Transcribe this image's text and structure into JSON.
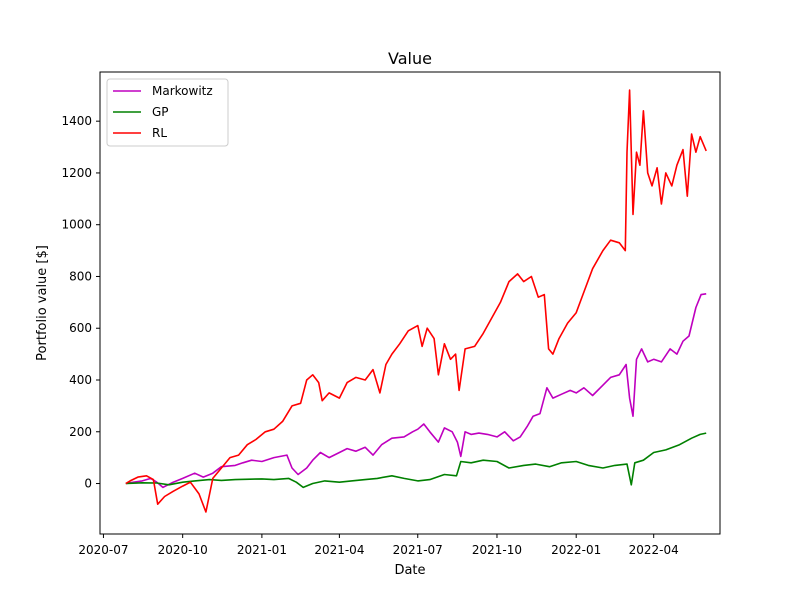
{
  "chart_data": {
    "type": "line",
    "title": "Value",
    "xlabel": "Date",
    "ylabel": "Portfolio value [$]",
    "xlim": [
      "2020-06-27",
      "2022-06-17"
    ],
    "ylim": [
      -195,
      1590
    ],
    "x_ticks": [
      "2020-07",
      "2020-10",
      "2021-01",
      "2021-04",
      "2021-07",
      "2021-10",
      "2022-01",
      "2022-04"
    ],
    "y_ticks": [
      0,
      200,
      400,
      600,
      800,
      1000,
      1200,
      1400
    ],
    "grid": false,
    "legend_position": "upper-left",
    "series": [
      {
        "name": "Markowitz",
        "color": "#bf00bf",
        "points": [
          [
            "2020-07-27",
            0
          ],
          [
            "2020-08-05",
            5
          ],
          [
            "2020-08-15",
            10
          ],
          [
            "2020-08-25",
            20
          ],
          [
            "2020-09-01",
            5
          ],
          [
            "2020-09-08",
            -15
          ],
          [
            "2020-09-20",
            5
          ],
          [
            "2020-10-01",
            20
          ],
          [
            "2020-10-15",
            40
          ],
          [
            "2020-10-25",
            25
          ],
          [
            "2020-11-05",
            40
          ],
          [
            "2020-11-15",
            65
          ],
          [
            "2020-12-01",
            70
          ],
          [
            "2020-12-10",
            80
          ],
          [
            "2020-12-20",
            90
          ],
          [
            "2021-01-01",
            85
          ],
          [
            "2021-01-15",
            100
          ],
          [
            "2021-01-30",
            110
          ],
          [
            "2021-02-05",
            60
          ],
          [
            "2021-02-12",
            35
          ],
          [
            "2021-02-22",
            60
          ],
          [
            "2021-03-01",
            90
          ],
          [
            "2021-03-10",
            120
          ],
          [
            "2021-03-20",
            100
          ],
          [
            "2021-04-01",
            120
          ],
          [
            "2021-04-10",
            135
          ],
          [
            "2021-04-20",
            125
          ],
          [
            "2021-05-01",
            140
          ],
          [
            "2021-05-10",
            110
          ],
          [
            "2021-05-20",
            150
          ],
          [
            "2021-06-01",
            175
          ],
          [
            "2021-06-15",
            180
          ],
          [
            "2021-06-25",
            200
          ],
          [
            "2021-07-01",
            210
          ],
          [
            "2021-07-08",
            230
          ],
          [
            "2021-07-15",
            200
          ],
          [
            "2021-07-25",
            160
          ],
          [
            "2021-08-01",
            215
          ],
          [
            "2021-08-10",
            200
          ],
          [
            "2021-08-16",
            160
          ],
          [
            "2021-08-20",
            105
          ],
          [
            "2021-08-25",
            200
          ],
          [
            "2021-09-01",
            190
          ],
          [
            "2021-09-10",
            195
          ],
          [
            "2021-09-20",
            190
          ],
          [
            "2021-10-01",
            180
          ],
          [
            "2021-10-10",
            200
          ],
          [
            "2021-10-20",
            165
          ],
          [
            "2021-10-28",
            180
          ],
          [
            "2021-11-05",
            220
          ],
          [
            "2021-11-12",
            260
          ],
          [
            "2021-11-20",
            270
          ],
          [
            "2021-11-28",
            370
          ],
          [
            "2021-12-05",
            330
          ],
          [
            "2021-12-15",
            345
          ],
          [
            "2021-12-25",
            360
          ],
          [
            "2022-01-01",
            350
          ],
          [
            "2022-01-10",
            370
          ],
          [
            "2022-01-20",
            340
          ],
          [
            "2022-02-01",
            380
          ],
          [
            "2022-02-10",
            410
          ],
          [
            "2022-02-20",
            420
          ],
          [
            "2022-02-28",
            460
          ],
          [
            "2022-03-04",
            330
          ],
          [
            "2022-03-08",
            260
          ],
          [
            "2022-03-12",
            480
          ],
          [
            "2022-03-18",
            520
          ],
          [
            "2022-03-25",
            470
          ],
          [
            "2022-04-01",
            480
          ],
          [
            "2022-04-10",
            470
          ],
          [
            "2022-04-20",
            520
          ],
          [
            "2022-04-28",
            500
          ],
          [
            "2022-05-05",
            550
          ],
          [
            "2022-05-12",
            570
          ],
          [
            "2022-05-20",
            680
          ],
          [
            "2022-05-26",
            730
          ],
          [
            "2022-06-01",
            733
          ]
        ]
      },
      {
        "name": "GP",
        "color": "#008000",
        "points": [
          [
            "2020-07-27",
            0
          ],
          [
            "2020-08-15",
            3
          ],
          [
            "2020-09-01",
            2
          ],
          [
            "2020-09-15",
            -5
          ],
          [
            "2020-10-01",
            5
          ],
          [
            "2020-10-15",
            10
          ],
          [
            "2020-11-01",
            15
          ],
          [
            "2020-11-15",
            12
          ],
          [
            "2020-12-01",
            15
          ],
          [
            "2021-01-01",
            18
          ],
          [
            "2021-01-15",
            15
          ],
          [
            "2021-02-01",
            20
          ],
          [
            "2021-02-10",
            5
          ],
          [
            "2021-02-18",
            -15
          ],
          [
            "2021-03-01",
            0
          ],
          [
            "2021-03-15",
            10
          ],
          [
            "2021-04-01",
            5
          ],
          [
            "2021-04-15",
            10
          ],
          [
            "2021-05-01",
            15
          ],
          [
            "2021-05-15",
            20
          ],
          [
            "2021-06-01",
            30
          ],
          [
            "2021-06-15",
            20
          ],
          [
            "2021-07-01",
            10
          ],
          [
            "2021-07-15",
            15
          ],
          [
            "2021-08-01",
            35
          ],
          [
            "2021-08-15",
            30
          ],
          [
            "2021-08-20",
            85
          ],
          [
            "2021-09-01",
            80
          ],
          [
            "2021-09-15",
            90
          ],
          [
            "2021-10-01",
            85
          ],
          [
            "2021-10-15",
            60
          ],
          [
            "2021-11-01",
            70
          ],
          [
            "2021-11-15",
            75
          ],
          [
            "2021-12-01",
            65
          ],
          [
            "2021-12-15",
            80
          ],
          [
            "2022-01-01",
            85
          ],
          [
            "2022-01-15",
            70
          ],
          [
            "2022-02-01",
            60
          ],
          [
            "2022-02-15",
            70
          ],
          [
            "2022-03-01",
            75
          ],
          [
            "2022-03-06",
            -5
          ],
          [
            "2022-03-10",
            80
          ],
          [
            "2022-03-20",
            90
          ],
          [
            "2022-04-01",
            120
          ],
          [
            "2022-04-15",
            130
          ],
          [
            "2022-05-01",
            150
          ],
          [
            "2022-05-15",
            175
          ],
          [
            "2022-05-25",
            190
          ],
          [
            "2022-06-01",
            195
          ]
        ]
      },
      {
        "name": "RL",
        "color": "#ff0000",
        "points": [
          [
            "2020-07-27",
            0
          ],
          [
            "2020-08-01",
            10
          ],
          [
            "2020-08-10",
            25
          ],
          [
            "2020-08-20",
            30
          ],
          [
            "2020-08-28",
            15
          ],
          [
            "2020-09-02",
            -80
          ],
          [
            "2020-09-10",
            -50
          ],
          [
            "2020-09-20",
            -30
          ],
          [
            "2020-10-01",
            -10
          ],
          [
            "2020-10-10",
            5
          ],
          [
            "2020-10-20",
            -40
          ],
          [
            "2020-10-28",
            -110
          ],
          [
            "2020-11-05",
            20
          ],
          [
            "2020-11-15",
            60
          ],
          [
            "2020-11-25",
            100
          ],
          [
            "2020-12-05",
            110
          ],
          [
            "2020-12-15",
            150
          ],
          [
            "2020-12-25",
            170
          ],
          [
            "2021-01-05",
            200
          ],
          [
            "2021-01-15",
            210
          ],
          [
            "2021-01-25",
            240
          ],
          [
            "2021-02-05",
            300
          ],
          [
            "2021-02-15",
            310
          ],
          [
            "2021-02-22",
            400
          ],
          [
            "2021-03-01",
            420
          ],
          [
            "2021-03-08",
            390
          ],
          [
            "2021-03-12",
            320
          ],
          [
            "2021-03-20",
            350
          ],
          [
            "2021-04-01",
            330
          ],
          [
            "2021-04-10",
            390
          ],
          [
            "2021-04-20",
            410
          ],
          [
            "2021-05-01",
            400
          ],
          [
            "2021-05-10",
            440
          ],
          [
            "2021-05-18",
            350
          ],
          [
            "2021-05-25",
            460
          ],
          [
            "2021-06-01",
            500
          ],
          [
            "2021-06-10",
            540
          ],
          [
            "2021-06-20",
            590
          ],
          [
            "2021-07-01",
            610
          ],
          [
            "2021-07-06",
            530
          ],
          [
            "2021-07-12",
            600
          ],
          [
            "2021-07-20",
            560
          ],
          [
            "2021-07-25",
            420
          ],
          [
            "2021-08-01",
            540
          ],
          [
            "2021-08-08",
            480
          ],
          [
            "2021-08-14",
            500
          ],
          [
            "2021-08-18",
            360
          ],
          [
            "2021-08-25",
            520
          ],
          [
            "2021-09-05",
            530
          ],
          [
            "2021-09-15",
            580
          ],
          [
            "2021-09-25",
            640
          ],
          [
            "2021-10-05",
            700
          ],
          [
            "2021-10-15",
            780
          ],
          [
            "2021-10-25",
            810
          ],
          [
            "2021-11-01",
            780
          ],
          [
            "2021-11-10",
            800
          ],
          [
            "2021-11-18",
            720
          ],
          [
            "2021-11-25",
            730
          ],
          [
            "2021-11-30",
            520
          ],
          [
            "2021-12-05",
            500
          ],
          [
            "2021-12-12",
            560
          ],
          [
            "2021-12-22",
            620
          ],
          [
            "2022-01-01",
            660
          ],
          [
            "2022-01-10",
            740
          ],
          [
            "2022-01-20",
            830
          ],
          [
            "2022-02-01",
            900
          ],
          [
            "2022-02-10",
            940
          ],
          [
            "2022-02-20",
            930
          ],
          [
            "2022-02-27",
            900
          ],
          [
            "2022-03-01",
            1280
          ],
          [
            "2022-03-04",
            1520
          ],
          [
            "2022-03-08",
            1040
          ],
          [
            "2022-03-12",
            1280
          ],
          [
            "2022-03-16",
            1230
          ],
          [
            "2022-03-20",
            1440
          ],
          [
            "2022-03-25",
            1200
          ],
          [
            "2022-03-30",
            1150
          ],
          [
            "2022-04-05",
            1220
          ],
          [
            "2022-04-10",
            1080
          ],
          [
            "2022-04-15",
            1200
          ],
          [
            "2022-04-22",
            1150
          ],
          [
            "2022-04-28",
            1230
          ],
          [
            "2022-05-05",
            1290
          ],
          [
            "2022-05-10",
            1110
          ],
          [
            "2022-05-15",
            1350
          ],
          [
            "2022-05-20",
            1280
          ],
          [
            "2022-05-25",
            1340
          ],
          [
            "2022-06-01",
            1285
          ]
        ]
      }
    ]
  }
}
